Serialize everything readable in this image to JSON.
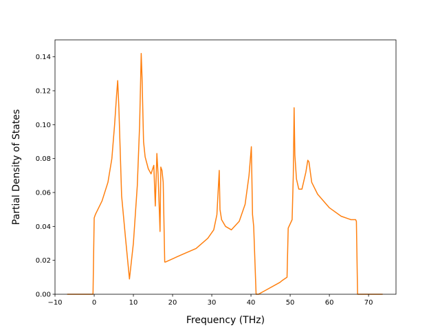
{
  "chart_data": {
    "type": "line",
    "title": "",
    "xlabel": "Frequency (THz)",
    "ylabel": "Partial Density of States",
    "xlim": [
      -10,
      77
    ],
    "ylim": [
      0,
      0.15
    ],
    "x_ticks": [
      -10,
      0,
      10,
      20,
      30,
      40,
      50,
      60,
      70
    ],
    "x_tick_labels": [
      "−10",
      "0",
      "10",
      "20",
      "30",
      "40",
      "50",
      "60",
      "70"
    ],
    "y_ticks": [
      0.0,
      0.02,
      0.04,
      0.06,
      0.08,
      0.1,
      0.12,
      0.14
    ],
    "y_tick_labels": [
      "0.00",
      "0.02",
      "0.04",
      "0.06",
      "0.08",
      "0.10",
      "0.12",
      "0.14"
    ],
    "grid": false,
    "legend": "none",
    "series": [
      {
        "color": "#ff7f0e",
        "x": [
          -6.9,
          -0.3,
          0.0,
          0.3,
          2,
          3.5,
          4.5,
          5.2,
          5.7,
          6.0,
          6.3,
          7.0,
          8.0,
          9.0,
          10.0,
          11.0,
          11.6,
          12.0,
          12.2,
          12.6,
          13.0,
          13.8,
          14.5,
          15.2,
          15.6,
          16.0,
          16.3,
          16.8,
          17.0,
          17.3,
          17.6,
          18.0,
          18.2,
          22,
          26,
          29,
          30.5,
          31.3,
          31.6,
          31.9,
          32.1,
          32.5,
          33.5,
          35,
          37,
          38.5,
          39.5,
          40.1,
          40.4,
          40.7,
          41.3,
          41.9,
          47.4,
          47.9,
          49.2,
          49.5,
          50.5,
          50.8,
          51.0,
          51.2,
          51.6,
          52.2,
          53.0,
          54.0,
          54.5,
          54.8,
          55.5,
          57,
          60,
          63,
          65.5,
          66.7,
          66.9,
          67.2,
          73.6
        ],
        "y": [
          0.0,
          0.0,
          0.045,
          0.047,
          0.055,
          0.066,
          0.08,
          0.1,
          0.117,
          0.126,
          0.11,
          0.058,
          0.033,
          0.009,
          0.03,
          0.064,
          0.1,
          0.142,
          0.128,
          0.09,
          0.081,
          0.074,
          0.071,
          0.076,
          0.052,
          0.083,
          0.071,
          0.037,
          0.075,
          0.073,
          0.066,
          0.019,
          0.019,
          0.023,
          0.027,
          0.033,
          0.038,
          0.047,
          0.06,
          0.073,
          0.05,
          0.044,
          0.04,
          0.038,
          0.043,
          0.053,
          0.07,
          0.087,
          0.047,
          0.04,
          0.0,
          0.0,
          0.007,
          0.008,
          0.01,
          0.039,
          0.044,
          0.07,
          0.11,
          0.082,
          0.068,
          0.062,
          0.062,
          0.072,
          0.079,
          0.078,
          0.066,
          0.059,
          0.051,
          0.046,
          0.044,
          0.044,
          0.043,
          0.0,
          0.0
        ]
      }
    ]
  }
}
